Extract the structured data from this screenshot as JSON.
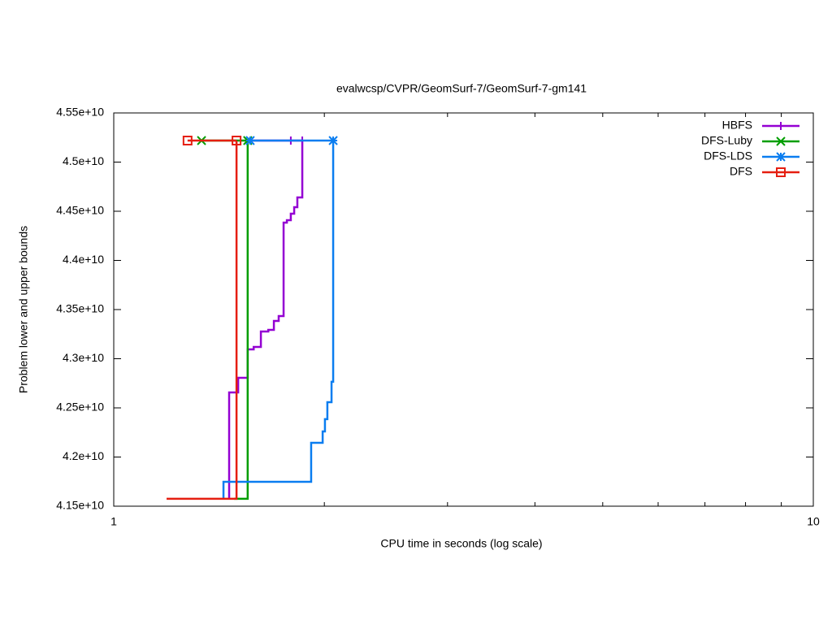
{
  "chart_data": {
    "type": "step",
    "title": "evalwcsp/CVPR/GeomSurf-7/GeomSurf-7-gm141",
    "x_label": "CPU time in seconds (log scale)",
    "y_label": "Problem lower and upper bounds",
    "xscale": "log",
    "xlim": [
      1,
      10
    ],
    "xticks": [
      1,
      10
    ],
    "xminorticks": [
      2,
      3,
      4,
      5,
      6,
      7,
      8,
      9
    ],
    "ylim": [
      41500000000.0,
      45500000000.0
    ],
    "yticks": [
      {
        "value": 41500000000.0,
        "label": "4.15e+10"
      },
      {
        "value": 42000000000.0,
        "label": "4.2e+10"
      },
      {
        "value": 42500000000.0,
        "label": "4.25e+10"
      },
      {
        "value": 43000000000.0,
        "label": "4.3e+10"
      },
      {
        "value": 43500000000.0,
        "label": "4.35e+10"
      },
      {
        "value": 44000000000.0,
        "label": "4.4e+10"
      },
      {
        "value": 44500000000.0,
        "label": "4.45e+10"
      },
      {
        "value": 45000000000.0,
        "label": "4.5e+10"
      },
      {
        "value": 45500000000.0,
        "label": "4.55e+10"
      }
    ],
    "legend": "top-right",
    "series": [
      {
        "name": "HBFS",
        "color": "#9400d3",
        "marker": "plus",
        "lower": {
          "x": [
            1.462,
            1.462,
            1.506,
            1.554,
            1.585,
            1.623,
            1.663,
            1.694,
            1.721,
            1.749,
            1.768,
            1.791,
            1.811,
            1.83,
            1.86
          ],
          "values": [
            41575000000.0,
            42657000000.0,
            42806000000.0,
            43095000000.0,
            43120000000.0,
            43277000000.0,
            43293000000.0,
            43384000000.0,
            43434000000.0,
            44384000000.0,
            44409000000.0,
            44475000000.0,
            44541000000.0,
            44641000000.0,
            45219000000.0
          ]
        },
        "upper": {
          "x": [
            1.567,
            1.791,
            1.86
          ],
          "values": [
            45219000000.0,
            45219000000.0,
            45219000000.0
          ]
        }
      },
      {
        "name": "DFS-Luby",
        "color": "#009e00",
        "marker": "cross",
        "lower": {
          "x": [
            1.486,
            1.554
          ],
          "values": [
            41575000000.0,
            45219000000.0
          ]
        },
        "upper": {
          "x": [
            1.335,
            1.554
          ],
          "values": [
            45219000000.0,
            45219000000.0
          ]
        }
      },
      {
        "name": "DFS-LDS",
        "color": "#0a7df0",
        "marker": "star",
        "lower": {
          "x": [
            1.435,
            1.435,
            1.915,
            1.989,
            2.004,
            2.02,
            2.048,
            2.059
          ],
          "values": [
            41575000000.0,
            41748000000.0,
            42145000000.0,
            42260000000.0,
            42385000000.0,
            42558000000.0,
            42765000000.0,
            45219000000.0
          ]
        },
        "upper": {
          "x": [
            1.567,
            2.059
          ],
          "values": [
            45219000000.0,
            45219000000.0
          ]
        }
      },
      {
        "name": "DFS",
        "color": "#e51e10",
        "marker": "square",
        "lower": {
          "x": [
            1.19,
            1.498
          ],
          "values": [
            41575000000.0,
            45219000000.0
          ]
        },
        "upper": {
          "x": [
            1.275,
            1.498
          ],
          "values": [
            45219000000.0,
            45219000000.0
          ]
        }
      }
    ]
  }
}
